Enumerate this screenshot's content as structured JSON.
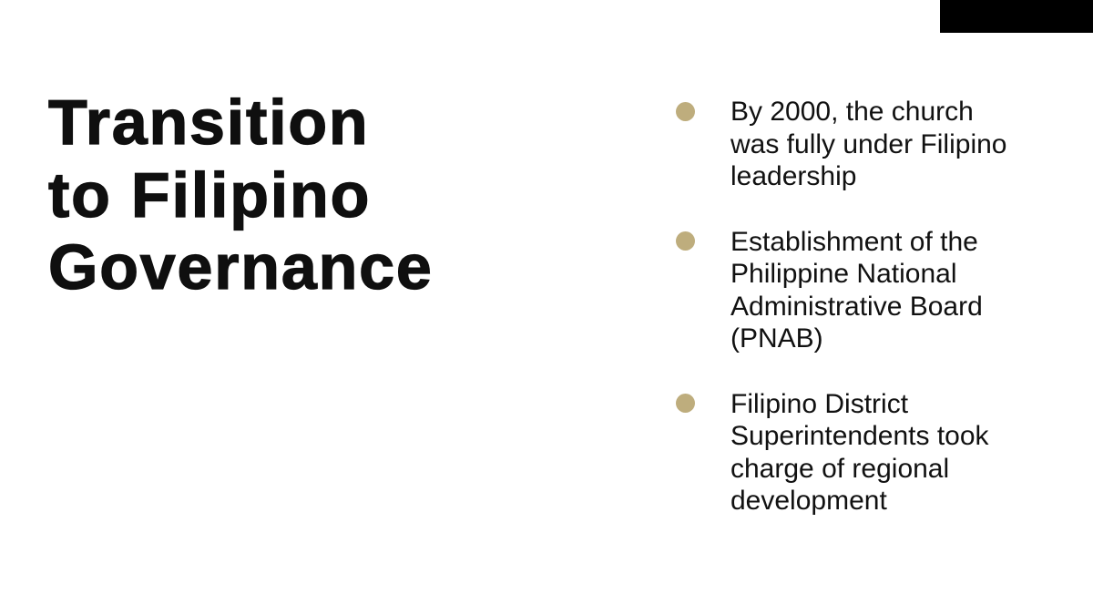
{
  "slide": {
    "title": "Transition\nto Filipino\nGovernance",
    "bullets": [
      {
        "text": "By 2000, the church\nwas fully under Filipino\nleadership"
      },
      {
        "text": "Establishment of the\nPhilippine National\nAdministrative Board\n(PNAB)"
      },
      {
        "text": "Filipino District\nSuperintendents took\ncharge of regional\ndevelopment"
      }
    ],
    "icons": {
      "bullet_marker": "filled-circle"
    },
    "colors": {
      "background": "#ffffff",
      "title_text": "#0f0f0f",
      "body_text": "#111111",
      "bullet_dot": "#bead7d",
      "top_right_bar": "#000000"
    }
  }
}
